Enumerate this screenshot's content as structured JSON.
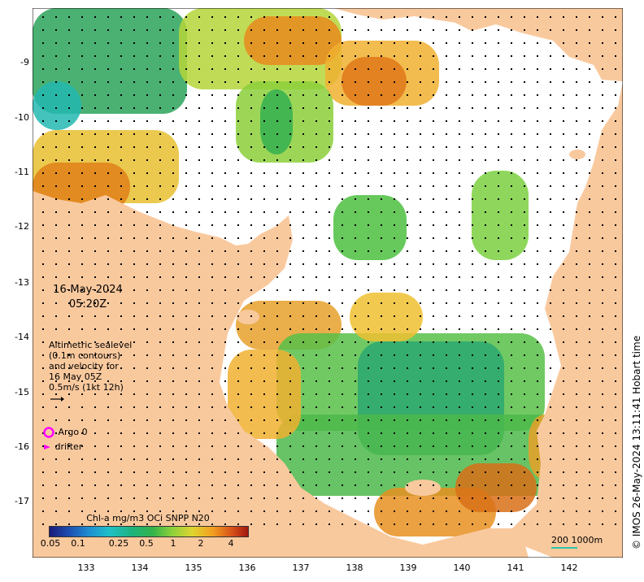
{
  "map": {
    "date": "16-May-2024",
    "time": "05:20Z",
    "altimetry_lines": [
      "Altimetric sealevel",
      "(0.1m contours)",
      "and velocity for",
      "16 May 05Z",
      "0.5m/s (1kt 12h)"
    ],
    "legend": {
      "argo": "Argo 0",
      "drifter": "drifter"
    },
    "colorbar": {
      "title": "Chl-a mg/m3 OCi SNPP N20",
      "labels": [
        "0.05",
        "0.1",
        "0.25",
        "0.5",
        "1",
        "2",
        "4"
      ]
    },
    "scalebar": "200  1000m",
    "credit": "© IMOS 26-May-2024 13:11:41 Hobart time",
    "x_ticks": [
      "133",
      "134",
      "135",
      "136",
      "137",
      "138",
      "139",
      "140",
      "141",
      "142"
    ],
    "y_ticks": [
      "-9",
      "-10",
      "-11",
      "-12",
      "-13",
      "-14",
      "-15",
      "-16",
      "-17"
    ],
    "colors": {
      "land": "#f9c99e",
      "ocean_nodata": "#ffffff",
      "argo": "#ff00ff",
      "drifter": "#ff00ff"
    }
  }
}
